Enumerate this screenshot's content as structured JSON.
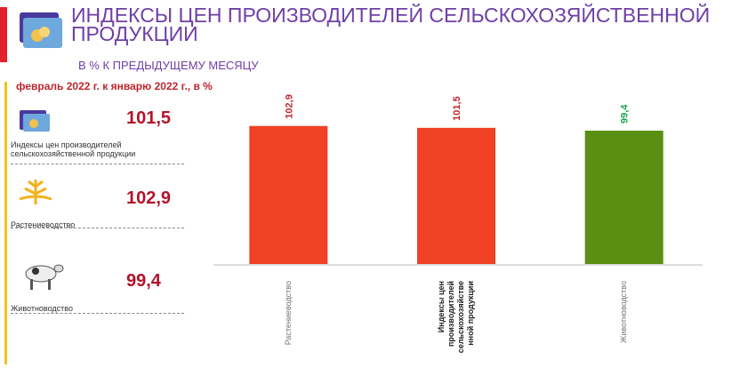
{
  "header": {
    "title": "ИНДЕКСЫ ЦЕН ПРОИЗВОДИТЕЛЕЙ СЕЛЬСКОХОЗЯЙСТВЕННОЙ ПРОДУКЦИИ",
    "subtitle": "В % К ПРЕДЫДУЩЕМУ МЕСЯЦУ"
  },
  "panel": {
    "period": "февраль 2022 г. к январю 2022 г., в %",
    "items": [
      {
        "label": "Индексы цен производителей сельскохозяйственной продукции",
        "value": "101,5"
      },
      {
        "label": "Растениеводство",
        "value": "102,9"
      },
      {
        "label": "Животноводство",
        "value": "99,4"
      }
    ]
  },
  "chart_data": {
    "type": "bar",
    "categories": [
      "Растениеводство",
      "Индексы цен производителей сельскохозяйственной продукции",
      "Животноводство"
    ],
    "values": [
      102.9,
      101.5,
      99.4
    ],
    "value_labels": [
      "102,9",
      "101,5",
      "99,4"
    ],
    "colors": [
      "#f04124",
      "#f04124",
      "#5a8f13"
    ],
    "label_colors": [
      "#c0262d",
      "#c0262d",
      "#1aa64a"
    ],
    "ylim": [
      0,
      110
    ]
  }
}
